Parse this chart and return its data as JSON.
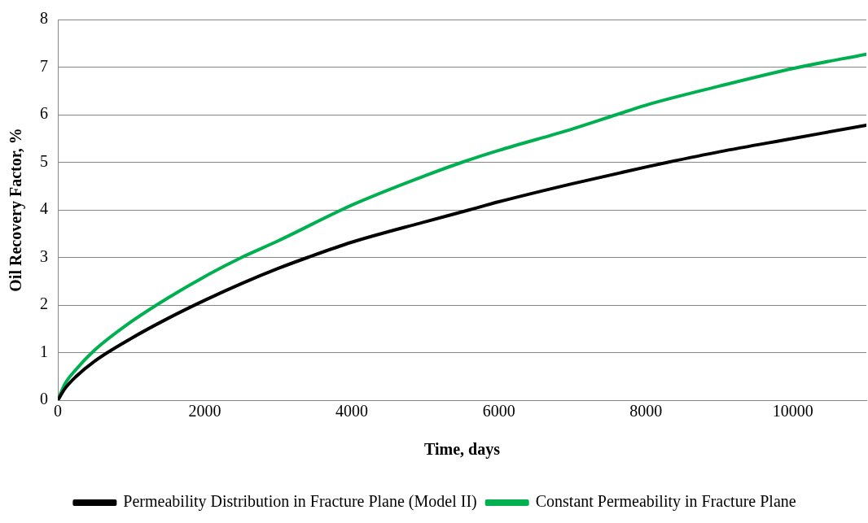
{
  "chart_data": {
    "type": "line",
    "xlabel": "Time, days",
    "ylabel": "Oil Recovery Factor, %",
    "xlim": [
      0,
      11000
    ],
    "xticks": [
      0,
      2000,
      4000,
      6000,
      8000,
      10000
    ],
    "ylim": [
      0,
      8
    ],
    "yticks": [
      0,
      1,
      2,
      3,
      4,
      5,
      6,
      7,
      8
    ],
    "grid": "y",
    "legend": "bottom",
    "marker": "none",
    "line_style": "solid",
    "series": [
      {
        "name": "Permeability Distribution in Fracture Plane (Model II)",
        "color": "#000000",
        "x": [
          0,
          100,
          250,
          500,
          1000,
          1500,
          2000,
          2500,
          3000,
          3400,
          4000,
          5000,
          5600,
          6000,
          7000,
          8000,
          8300,
          9000,
          10000,
          11000
        ],
        "values": [
          0,
          0.25,
          0.5,
          0.82,
          1.3,
          1.72,
          2.1,
          2.45,
          2.77,
          3.0,
          3.32,
          3.75,
          4.0,
          4.17,
          4.55,
          4.9,
          5.0,
          5.22,
          5.5,
          5.78
        ]
      },
      {
        "name": "Constant Permeability in Fracture Plane",
        "color": "#00b050",
        "x": [
          0,
          100,
          250,
          500,
          1000,
          1500,
          2000,
          2500,
          3000,
          4000,
          5000,
          5500,
          6000,
          7000,
          7600,
          8000,
          9000,
          10000,
          11000
        ],
        "values": [
          0,
          0.35,
          0.65,
          1.05,
          1.65,
          2.15,
          2.6,
          3.0,
          3.35,
          4.1,
          4.72,
          5.0,
          5.25,
          5.7,
          6.0,
          6.2,
          6.6,
          6.97,
          7.27
        ]
      }
    ]
  }
}
